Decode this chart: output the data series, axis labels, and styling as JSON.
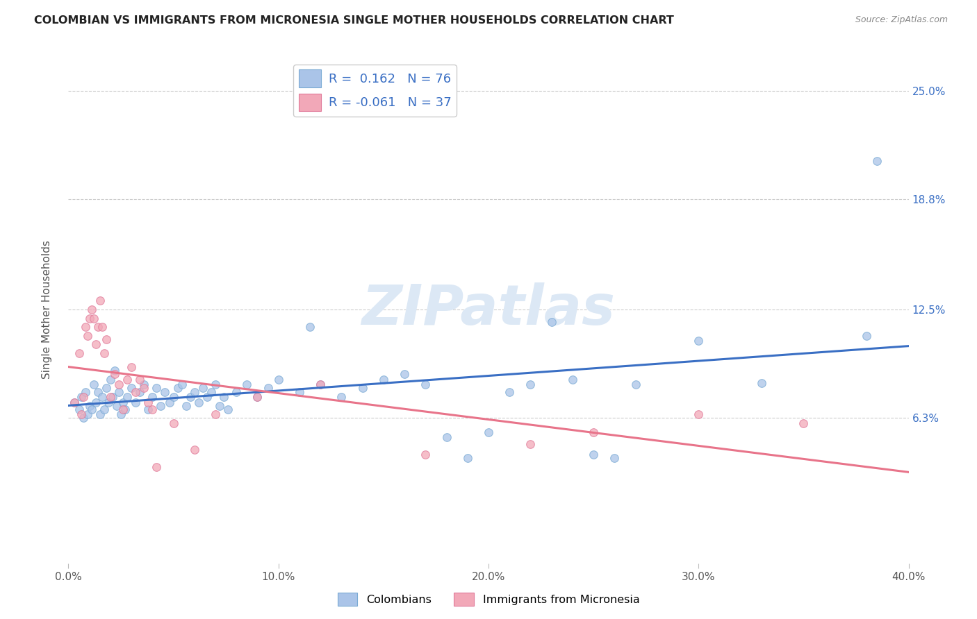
{
  "title": "COLOMBIAN VS IMMIGRANTS FROM MICRONESIA SINGLE MOTHER HOUSEHOLDS CORRELATION CHART",
  "source": "Source: ZipAtlas.com",
  "ylabel": "Single Mother Households",
  "x_tick_vals": [
    0.0,
    0.1,
    0.2,
    0.3,
    0.4
  ],
  "x_tick_labels": [
    "0.0%",
    "10.0%",
    "20.0%",
    "30.0%",
    "40.0%"
  ],
  "y_tick_vals": [
    0.063,
    0.125,
    0.188,
    0.25
  ],
  "y_tick_labels": [
    "6.3%",
    "12.5%",
    "18.8%",
    "25.0%"
  ],
  "x_min": 0.0,
  "x_max": 0.4,
  "y_min": -0.02,
  "y_max": 0.27,
  "watermark_text": "ZIPatlas",
  "legend_R1": "0.162",
  "legend_N1": "76",
  "legend_R2": "-0.061",
  "legend_N2": "37",
  "legend_label1": "Colombians",
  "legend_label2": "Immigrants from Micronesia",
  "blue_line_color": "#3a6fc4",
  "pink_line_color": "#e8748a",
  "blue_scatter_color": "#aac4e8",
  "pink_scatter_color": "#f2a8b8",
  "blue_scatter_edge": "#7aaad4",
  "pink_scatter_edge": "#e07898",
  "grid_color": "#cccccc",
  "title_color": "#222222",
  "ylabel_color": "#555555",
  "right_tick_color": "#3a6fc4",
  "source_color": "#888888",
  "blue_points": [
    [
      0.003,
      0.072
    ],
    [
      0.005,
      0.068
    ],
    [
      0.006,
      0.075
    ],
    [
      0.007,
      0.063
    ],
    [
      0.008,
      0.078
    ],
    [
      0.009,
      0.065
    ],
    [
      0.01,
      0.07
    ],
    [
      0.011,
      0.068
    ],
    [
      0.012,
      0.082
    ],
    [
      0.013,
      0.072
    ],
    [
      0.014,
      0.078
    ],
    [
      0.015,
      0.065
    ],
    [
      0.016,
      0.075
    ],
    [
      0.017,
      0.068
    ],
    [
      0.018,
      0.08
    ],
    [
      0.019,
      0.072
    ],
    [
      0.02,
      0.085
    ],
    [
      0.021,
      0.075
    ],
    [
      0.022,
      0.09
    ],
    [
      0.023,
      0.07
    ],
    [
      0.024,
      0.078
    ],
    [
      0.025,
      0.065
    ],
    [
      0.026,
      0.072
    ],
    [
      0.027,
      0.068
    ],
    [
      0.028,
      0.075
    ],
    [
      0.03,
      0.08
    ],
    [
      0.032,
      0.072
    ],
    [
      0.034,
      0.078
    ],
    [
      0.036,
      0.082
    ],
    [
      0.038,
      0.068
    ],
    [
      0.04,
      0.075
    ],
    [
      0.042,
      0.08
    ],
    [
      0.044,
      0.07
    ],
    [
      0.046,
      0.078
    ],
    [
      0.048,
      0.072
    ],
    [
      0.05,
      0.075
    ],
    [
      0.052,
      0.08
    ],
    [
      0.054,
      0.082
    ],
    [
      0.056,
      0.07
    ],
    [
      0.058,
      0.075
    ],
    [
      0.06,
      0.078
    ],
    [
      0.062,
      0.072
    ],
    [
      0.064,
      0.08
    ],
    [
      0.066,
      0.075
    ],
    [
      0.068,
      0.078
    ],
    [
      0.07,
      0.082
    ],
    [
      0.072,
      0.07
    ],
    [
      0.074,
      0.075
    ],
    [
      0.076,
      0.068
    ],
    [
      0.08,
      0.078
    ],
    [
      0.085,
      0.082
    ],
    [
      0.09,
      0.075
    ],
    [
      0.095,
      0.08
    ],
    [
      0.1,
      0.085
    ],
    [
      0.11,
      0.078
    ],
    [
      0.115,
      0.115
    ],
    [
      0.12,
      0.082
    ],
    [
      0.13,
      0.075
    ],
    [
      0.14,
      0.08
    ],
    [
      0.15,
      0.085
    ],
    [
      0.16,
      0.088
    ],
    [
      0.17,
      0.082
    ],
    [
      0.18,
      0.052
    ],
    [
      0.19,
      0.04
    ],
    [
      0.2,
      0.055
    ],
    [
      0.21,
      0.078
    ],
    [
      0.22,
      0.082
    ],
    [
      0.23,
      0.118
    ],
    [
      0.24,
      0.085
    ],
    [
      0.25,
      0.042
    ],
    [
      0.26,
      0.04
    ],
    [
      0.27,
      0.082
    ],
    [
      0.3,
      0.107
    ],
    [
      0.33,
      0.083
    ],
    [
      0.38,
      0.11
    ],
    [
      0.385,
      0.21
    ]
  ],
  "pink_points": [
    [
      0.003,
      0.072
    ],
    [
      0.005,
      0.1
    ],
    [
      0.006,
      0.065
    ],
    [
      0.007,
      0.075
    ],
    [
      0.008,
      0.115
    ],
    [
      0.009,
      0.11
    ],
    [
      0.01,
      0.12
    ],
    [
      0.011,
      0.125
    ],
    [
      0.012,
      0.12
    ],
    [
      0.013,
      0.105
    ],
    [
      0.014,
      0.115
    ],
    [
      0.015,
      0.13
    ],
    [
      0.016,
      0.115
    ],
    [
      0.017,
      0.1
    ],
    [
      0.018,
      0.108
    ],
    [
      0.02,
      0.075
    ],
    [
      0.022,
      0.088
    ],
    [
      0.024,
      0.082
    ],
    [
      0.026,
      0.068
    ],
    [
      0.028,
      0.085
    ],
    [
      0.03,
      0.092
    ],
    [
      0.032,
      0.078
    ],
    [
      0.034,
      0.085
    ],
    [
      0.036,
      0.08
    ],
    [
      0.038,
      0.072
    ],
    [
      0.04,
      0.068
    ],
    [
      0.042,
      0.035
    ],
    [
      0.05,
      0.06
    ],
    [
      0.06,
      0.045
    ],
    [
      0.07,
      0.065
    ],
    [
      0.09,
      0.075
    ],
    [
      0.12,
      0.082
    ],
    [
      0.17,
      0.042
    ],
    [
      0.22,
      0.048
    ],
    [
      0.25,
      0.055
    ],
    [
      0.3,
      0.065
    ],
    [
      0.35,
      0.06
    ]
  ]
}
